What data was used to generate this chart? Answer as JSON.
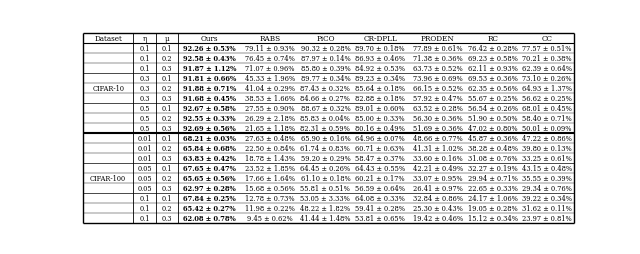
{
  "headers": [
    "Dataset",
    "η",
    "μ",
    "Ours",
    "RABS",
    "PiCO",
    "CR-DPLL",
    "PRODEN",
    "RC",
    "CC"
  ],
  "rows": [
    [
      "",
      "0.1",
      "0.1",
      "92.26 ± 0.53%",
      "79.11 ± 0.93%",
      "90.32 ± 0.28%",
      "89.70 ± 0.18%",
      "77.89 ± 0.61%",
      "76.42 ± 0.28%",
      "77.57 ± 0.51%"
    ],
    [
      "",
      "0.1",
      "0.2",
      "92.58 ± 0.43%",
      "76.45 ± 0.74%",
      "87.97 ± 0.14%",
      "86.93 ± 0.46%",
      "71.38 ± 0.36%",
      "69.23 ± 0.58%",
      "70.21 ± 0.38%"
    ],
    [
      "",
      "0.1",
      "0.3",
      "91.87 ± 1.12%",
      "71.07 ± 0.96%",
      "85.80 ± 0.39%",
      "84.92 ± 0.53%",
      "63.73 ± 0.52%",
      "62.11 ± 0.93%",
      "62.39 ± 0.64%"
    ],
    [
      "",
      "0.3",
      "0.1",
      "91.81 ± 0.66%",
      "45.33 ± 1.96%",
      "89.77 ± 0.34%",
      "89.23 ± 0.34%",
      "73.96 ± 0.69%",
      "69.53 ± 0.36%",
      "73.10 ± 0.26%"
    ],
    [
      "",
      "0.3",
      "0.2",
      "91.88 ± 0.71%",
      "41.04 ± 0.29%",
      "87.43 ± 0.32%",
      "85.64 ± 0.18%",
      "66.15 ± 0.52%",
      "62.35 ± 0.56%",
      "64.93 ± 1.37%"
    ],
    [
      "",
      "0.3",
      "0.3",
      "91.68 ± 0.45%",
      "38.53 ± 1.66%",
      "84.66 ± 0.27%",
      "82.88 ± 0.18%",
      "57.92 ± 0.47%",
      "55.67 ± 0.25%",
      "56.62 ± 0.25%"
    ],
    [
      "",
      "0.5",
      "0.1",
      "92.67 ± 0.58%",
      "27.55 ± 0.90%",
      "88.67 ± 0.32%",
      "89.01 ± 0.60%",
      "63.52 ± 0.28%",
      "56.54 ± 0.26%",
      "68.01 ± 0.45%"
    ],
    [
      "",
      "0.5",
      "0.2",
      "92.55 ± 0.33%",
      "26.29 ± 2.18%",
      "85.83 ± 0.04%",
      "85.00 ± 0.33%",
      "56.30 ± 0.36%",
      "51.90 ± 0.50%",
      "58.40 ± 0.71%"
    ],
    [
      "",
      "0.5",
      "0.3",
      "92.69 ± 0.56%",
      "21.65 ± 1.18%",
      "82.31 ± 0.59%",
      "80.16 ± 0.49%",
      "51.69 ± 0.36%",
      "47.02 ± 0.80%",
      "50.01 ± 0.09%"
    ],
    [
      "",
      "0.01",
      "0.1",
      "68.21 ± 0.03%",
      "27.63 ± 0.48%",
      "65.90 ± 0.16%",
      "64.96 ± 0.07%",
      "48.66 ± 0.77%",
      "45.87 ± 0.36%",
      "47.22 ± 0.86%"
    ],
    [
      "",
      "0.01",
      "0.2",
      "65.84 ± 0.68%",
      "22.50 ± 0.84%",
      "61.74 ± 0.83%",
      "60.71 ± 0.63%",
      "41.31 ± 1.02%",
      "38.28 ± 0.48%",
      "39.80 ± 0.13%"
    ],
    [
      "",
      "0.01",
      "0.3",
      "63.83 ± 0.42%",
      "18.78 ± 1.43%",
      "59.20 ± 0.29%",
      "58.47 ± 0.37%",
      "33.60 ± 0.16%",
      "31.08 ± 0.76%",
      "33.25 ± 0.61%"
    ],
    [
      "",
      "0.05",
      "0.1",
      "67.65 ± 0.47%",
      "23.52 ± 1.85%",
      "64.45 ± 0.26%",
      "64.43 ± 0.55%",
      "42.21 ± 0.49%",
      "32.27 ± 0.19%",
      "43.15 ± 0.48%"
    ],
    [
      "",
      "0.05",
      "0.2",
      "65.65 ± 0.56%",
      "17.66 ± 1.64%",
      "61.10 ± 0.18%",
      "60.21 ± 0.17%",
      "33.07 ± 0.95%",
      "29.94 ± 0.71%",
      "35.55 ± 0.39%"
    ],
    [
      "",
      "0.05",
      "0.3",
      "62.97 ± 0.28%",
      "15.68 ± 0.56%",
      "55.81 ± 0.51%",
      "56.59 ± 0.64%",
      "26.41 ± 0.97%",
      "22.65 ± 0.33%",
      "29.34 ± 0.76%"
    ],
    [
      "",
      "0.1",
      "0.1",
      "67.84 ± 0.25%",
      "12.78 ± 0.73%",
      "53.05 ± 3.33%",
      "64.08 ± 0.33%",
      "32.84 ± 0.86%",
      "24.17 ± 1.06%",
      "39.22 ± 0.34%"
    ],
    [
      "",
      "0.1",
      "0.2",
      "65.42 ± 0.27%",
      "11.98 ± 0.22%",
      "48.22 ± 1.82%",
      "59.41 ± 0.28%",
      "25.30 ± 0.43%",
      "19.05 ± 0.28%",
      "31.62 ± 0.11%"
    ],
    [
      "",
      "0.1",
      "0.3",
      "62.08 ± 0.78%",
      "9.45 ± 0.62%",
      "41.44 ± 1.48%",
      "53.81 ± 0.65%",
      "19.42 ± 0.46%",
      "15.12 ± 0.34%",
      "23.97 ± 0.81%"
    ]
  ],
  "cifar10_label": "CIFAR-10",
  "cifar100_label": "CIFAR-100",
  "cifar10_rows": [
    0,
    8
  ],
  "cifar100_rows": [
    9,
    17
  ],
  "major_sep_after": [
    8
  ],
  "minor_sep_after": [
    2,
    5,
    11,
    14
  ],
  "bold_col": 3,
  "font_size": 4.8,
  "header_font_size": 5.2
}
